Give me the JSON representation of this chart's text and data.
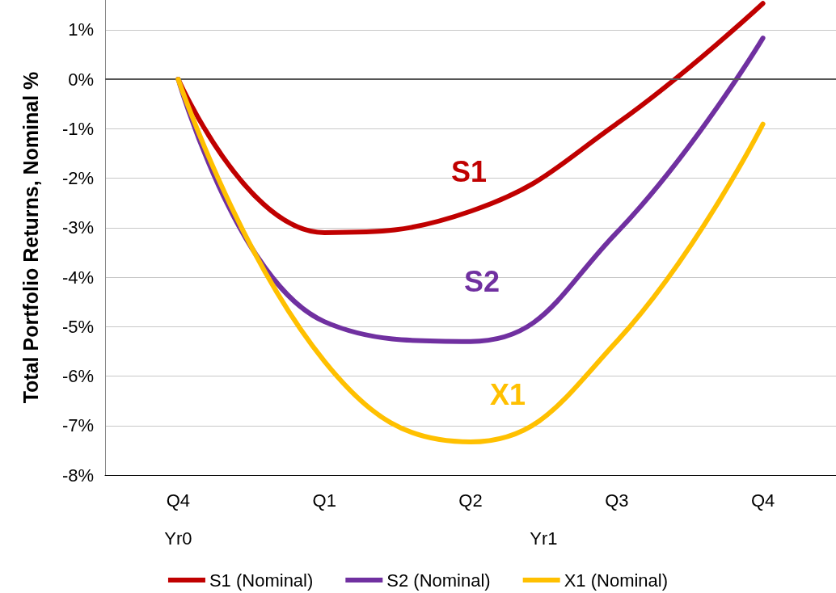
{
  "chart_data": {
    "type": "line",
    "ylabel": "Total Portfolio Returns, Nominal %",
    "categories": [
      "Q4",
      "Q1",
      "Q2",
      "Q3",
      "Q4"
    ],
    "series": [
      {
        "name": "S1 (Nominal)",
        "color": "#c00000",
        "values": [
          0,
          -3.1,
          -2.67,
          -0.9,
          1.53
        ]
      },
      {
        "name": "S2 (Nominal)",
        "color": "#7030a0",
        "values": [
          0,
          -4.9,
          -5.3,
          -3.1,
          0.83
        ]
      },
      {
        "name": "X1 (Nominal)",
        "color": "#ffc000",
        "values": [
          0,
          -5.7,
          -7.33,
          -5.3,
          -0.91
        ]
      }
    ],
    "ylim": [
      -8,
      1.6
    ],
    "yticks": [
      {
        "value": -8,
        "label": "-8%"
      },
      {
        "value": -7,
        "label": "-7%"
      },
      {
        "value": -6,
        "label": "-6%"
      },
      {
        "value": -5,
        "label": "-5%"
      },
      {
        "value": -4,
        "label": "-4%"
      },
      {
        "value": -3,
        "label": "-3%"
      },
      {
        "value": -2,
        "label": "-2%"
      },
      {
        "value": -1,
        "label": "-1%"
      },
      {
        "value": 0,
        "label": "0%"
      },
      {
        "value": 1,
        "label": "1%"
      }
    ],
    "grid": "y",
    "legend": "bottom",
    "marker": "none",
    "line_style": "solid",
    "ref_lines": [
      {
        "axis": "y",
        "value": 0,
        "color": "#555555"
      }
    ],
    "annotations": [
      "S1",
      "S2",
      "X1",
      "Yr0",
      "Yr1"
    ]
  }
}
